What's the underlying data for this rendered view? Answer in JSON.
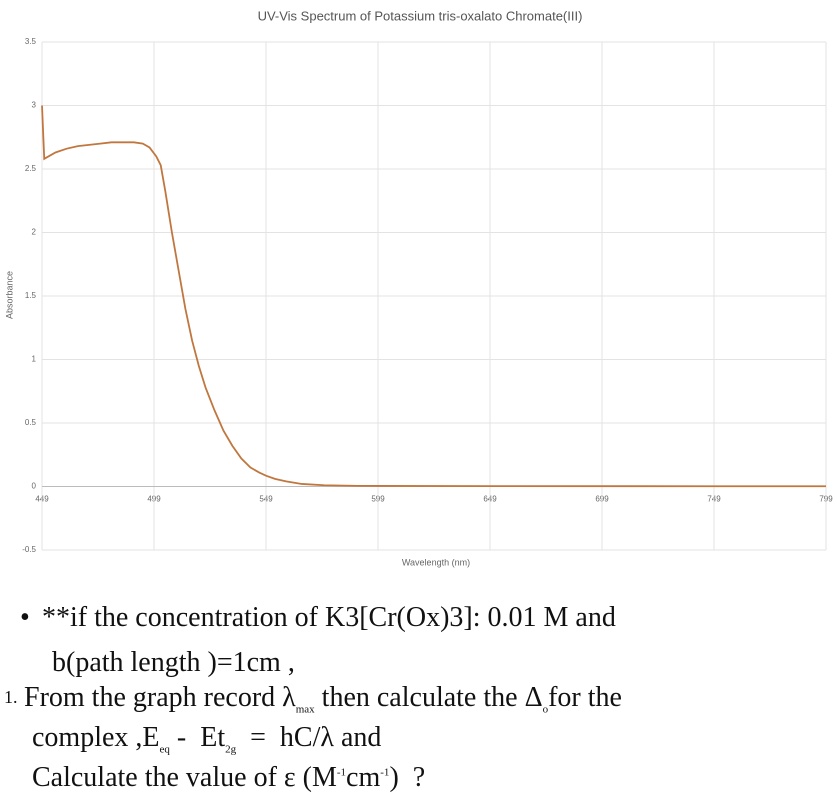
{
  "chart_data": {
    "type": "line",
    "title": "UV-Vis Spectrum of Potassium tris-oxalato Chromate(III)",
    "x_label": "Wavelength (nm)",
    "y_label": "Absorbance",
    "x": [
      449,
      450,
      455,
      460,
      465,
      470,
      475,
      480,
      485,
      490,
      494,
      497,
      500,
      502,
      504,
      507,
      510,
      513,
      516,
      519,
      522,
      526,
      530,
      534,
      538,
      542,
      546,
      549,
      553,
      558,
      565,
      575,
      590,
      650,
      750,
      799
    ],
    "series": [
      {
        "name": "Absorbance",
        "color": "#c0773f",
        "values": [
          3.0,
          2.58,
          2.63,
          2.66,
          2.68,
          2.69,
          2.7,
          2.71,
          2.71,
          2.71,
          2.7,
          2.67,
          2.6,
          2.53,
          2.33,
          2.0,
          1.7,
          1.4,
          1.15,
          0.95,
          0.78,
          0.6,
          0.44,
          0.32,
          0.22,
          0.15,
          0.11,
          0.085,
          0.06,
          0.04,
          0.02,
          0.01,
          0.005,
          0.003,
          0.002,
          0.002
        ]
      }
    ],
    "xlim": [
      449,
      799
    ],
    "xticks": [
      449,
      499,
      549,
      599,
      649,
      699,
      749,
      799
    ],
    "ylim": [
      -0.5,
      3.5
    ],
    "yticks": [
      -0.5,
      0,
      0.5,
      1,
      1.5,
      2,
      2.5,
      3,
      3.5
    ],
    "grid": true
  },
  "question": {
    "bullet": "•",
    "line1": "**if the concentration of K3[Cr(Ox)3]: 0.01 M and",
    "line2": "b(path length )=1cm ,",
    "number": "1.",
    "line3": [
      "From the graph record λ",
      {
        "sub": "max"
      },
      " then calculate the Δ",
      {
        "sub": "o"
      },
      "for the"
    ],
    "line4": [
      "complex ,E",
      {
        "sub": "eq"
      },
      " -  Et",
      {
        "sub": "2g"
      },
      "  =  hC/λ and"
    ],
    "line5": [
      "Calculate the value of ε (M",
      {
        "sup": "-1"
      },
      "cm",
      {
        "sup": "-1"
      },
      ")  ?"
    ]
  }
}
